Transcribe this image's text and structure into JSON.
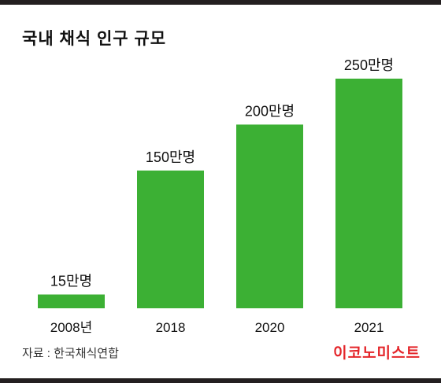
{
  "title": "국내 채식 인구 규모",
  "source": "자료 : 한국채식연합",
  "brand": "이코노미스트",
  "colors": {
    "bar": "#3cb034",
    "accent": "#e4252a",
    "rule": "#231f20",
    "text": "#111111"
  },
  "chart_data": {
    "type": "bar",
    "title": "국내 채식 인구 규모",
    "categories": [
      "2008년",
      "2018",
      "2020",
      "2021"
    ],
    "values": [
      15,
      150,
      200,
      250
    ],
    "data_labels": [
      "15만명",
      "150만명",
      "200만명",
      "250만명"
    ],
    "unit": "만명",
    "xlabel": "",
    "ylabel": "",
    "ylim": [
      0,
      250
    ],
    "grid": false,
    "legend": "none"
  }
}
